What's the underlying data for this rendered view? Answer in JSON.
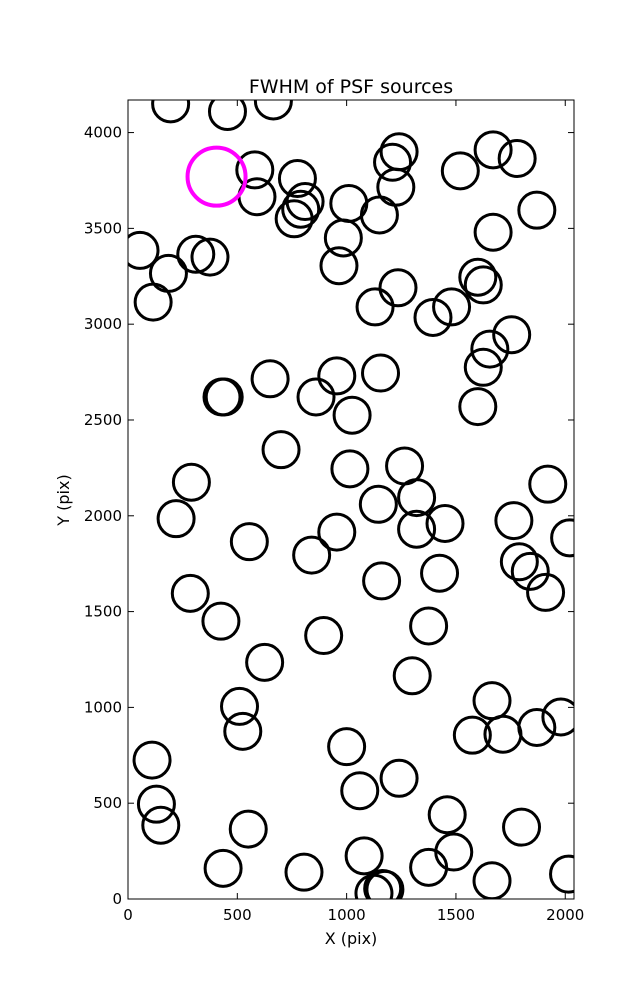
{
  "chart_data": {
    "type": "scatter",
    "title": "FWHM of PSF sources",
    "xlabel": "X (pix)",
    "ylabel": "Y (pix)",
    "xlim": [
      0,
      2040
    ],
    "ylim": [
      0,
      4170
    ],
    "xticks": [
      0,
      500,
      1000,
      1500,
      2000
    ],
    "yticks": [
      0,
      500,
      1000,
      1500,
      2000,
      2500,
      3000,
      3500,
      4000
    ],
    "grid": false,
    "marker": "open-circle",
    "marker_color": "#000000",
    "highlight_color": "#ff00ff",
    "highlight": {
      "x": 405,
      "y": 3770
    },
    "points": [
      {
        "x": 195,
        "y": 4150
      },
      {
        "x": 455,
        "y": 4110
      },
      {
        "x": 665,
        "y": 4165
      },
      {
        "x": 580,
        "y": 3805
      },
      {
        "x": 590,
        "y": 3665
      },
      {
        "x": 775,
        "y": 3760
      },
      {
        "x": 810,
        "y": 3640
      },
      {
        "x": 790,
        "y": 3600
      },
      {
        "x": 760,
        "y": 3550
      },
      {
        "x": 1010,
        "y": 3630
      },
      {
        "x": 1150,
        "y": 3570
      },
      {
        "x": 985,
        "y": 3450
      },
      {
        "x": 965,
        "y": 3305
      },
      {
        "x": 1210,
        "y": 3845
      },
      {
        "x": 1240,
        "y": 3900
      },
      {
        "x": 1225,
        "y": 3715
      },
      {
        "x": 1520,
        "y": 3800
      },
      {
        "x": 1670,
        "y": 3910
      },
      {
        "x": 1780,
        "y": 3865
      },
      {
        "x": 1670,
        "y": 3480
      },
      {
        "x": 1870,
        "y": 3595
      },
      {
        "x": 55,
        "y": 3385
      },
      {
        "x": 185,
        "y": 3265
      },
      {
        "x": 310,
        "y": 3365
      },
      {
        "x": 375,
        "y": 3350
      },
      {
        "x": 115,
        "y": 3115
      },
      {
        "x": 1130,
        "y": 3090
      },
      {
        "x": 1235,
        "y": 3190
      },
      {
        "x": 1395,
        "y": 3035
      },
      {
        "x": 1480,
        "y": 3090
      },
      {
        "x": 1600,
        "y": 3245
      },
      {
        "x": 1625,
        "y": 3205
      },
      {
        "x": 1755,
        "y": 2945
      },
      {
        "x": 1655,
        "y": 2870
      },
      {
        "x": 1625,
        "y": 2775
      },
      {
        "x": 1600,
        "y": 2570
      },
      {
        "x": 650,
        "y": 2715
      },
      {
        "x": 440,
        "y": 2620
      },
      {
        "x": 430,
        "y": 2620
      },
      {
        "x": 955,
        "y": 2730
      },
      {
        "x": 1155,
        "y": 2745
      },
      {
        "x": 860,
        "y": 2620
      },
      {
        "x": 1025,
        "y": 2525
      },
      {
        "x": 700,
        "y": 2345
      },
      {
        "x": 1015,
        "y": 2245
      },
      {
        "x": 1265,
        "y": 2260
      },
      {
        "x": 290,
        "y": 2175
      },
      {
        "x": 220,
        "y": 1985
      },
      {
        "x": 1145,
        "y": 2060
      },
      {
        "x": 1320,
        "y": 2095
      },
      {
        "x": 1320,
        "y": 1930
      },
      {
        "x": 1450,
        "y": 1960
      },
      {
        "x": 1765,
        "y": 1975
      },
      {
        "x": 1920,
        "y": 2165
      },
      {
        "x": 2020,
        "y": 1885
      },
      {
        "x": 555,
        "y": 1865
      },
      {
        "x": 840,
        "y": 1795
      },
      {
        "x": 955,
        "y": 1915
      },
      {
        "x": 1160,
        "y": 1660
      },
      {
        "x": 1425,
        "y": 1700
      },
      {
        "x": 1790,
        "y": 1760
      },
      {
        "x": 1840,
        "y": 1710
      },
      {
        "x": 1910,
        "y": 1600
      },
      {
        "x": 285,
        "y": 1595
      },
      {
        "x": 425,
        "y": 1450
      },
      {
        "x": 625,
        "y": 1235
      },
      {
        "x": 895,
        "y": 1375
      },
      {
        "x": 1375,
        "y": 1425
      },
      {
        "x": 1300,
        "y": 1165
      },
      {
        "x": 510,
        "y": 1005
      },
      {
        "x": 525,
        "y": 875
      },
      {
        "x": 1665,
        "y": 1035
      },
      {
        "x": 1575,
        "y": 855
      },
      {
        "x": 1715,
        "y": 860
      },
      {
        "x": 1870,
        "y": 895
      },
      {
        "x": 1980,
        "y": 950
      },
      {
        "x": 110,
        "y": 725
      },
      {
        "x": 1000,
        "y": 795
      },
      {
        "x": 1240,
        "y": 630
      },
      {
        "x": 130,
        "y": 495
      },
      {
        "x": 150,
        "y": 385
      },
      {
        "x": 1060,
        "y": 565
      },
      {
        "x": 550,
        "y": 365
      },
      {
        "x": 1460,
        "y": 440
      },
      {
        "x": 1800,
        "y": 375
      },
      {
        "x": 1490,
        "y": 245
      },
      {
        "x": 435,
        "y": 160
      },
      {
        "x": 805,
        "y": 140
      },
      {
        "x": 1080,
        "y": 225
      },
      {
        "x": 1375,
        "y": 165
      },
      {
        "x": 1665,
        "y": 95
      },
      {
        "x": 2015,
        "y": 130
      },
      {
        "x": 1165,
        "y": 55
      },
      {
        "x": 1175,
        "y": 50
      },
      {
        "x": 1125,
        "y": 30
      }
    ]
  }
}
